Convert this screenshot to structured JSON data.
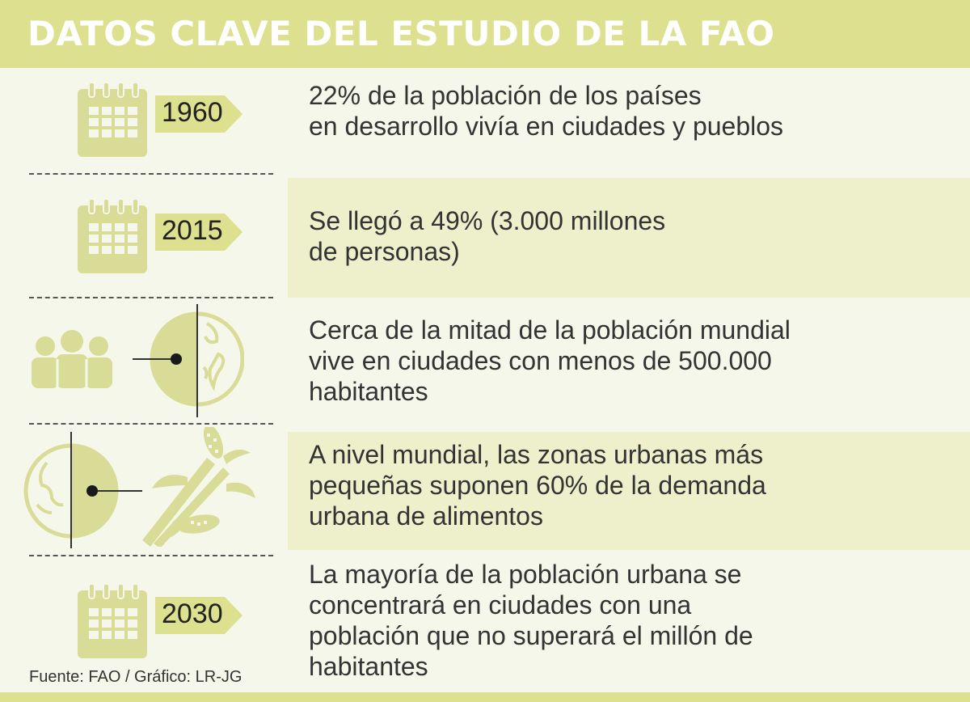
{
  "header": {
    "title": "DATOS CLAVE DEL ESTUDIO DE LA FAO"
  },
  "rows": [
    {
      "year": "1960",
      "lines": [
        "22% de la población de los países",
        "en desarrollo vivía en ciudades y pueblos"
      ]
    },
    {
      "year": "2015",
      "lines": [
        "Se llegó a 49% (3.000 millones",
        "de personas)"
      ]
    },
    {
      "year": "",
      "lines": [
        "Cerca de la mitad de la población mundial",
        "vive en ciudades con menos de 500.000",
        "habitantes"
      ]
    },
    {
      "year": "",
      "lines": [
        "A nivel mundial, las zonas urbanas más",
        "pequeñas suponen 60% de la demanda",
        "urbana de alimentos"
      ]
    },
    {
      "year": "2030",
      "lines": [
        "La mayoría de la población urbana se",
        "concentrará en ciudades con una",
        "población que no superará el millón de",
        "habitantes"
      ]
    }
  ],
  "footer": {
    "source": "Fuente: FAO / Gráfico: LR-JG"
  },
  "colors": {
    "accent": "#dde08f",
    "band": "#eef0cc",
    "background": "#f5f7ea",
    "icon": "#d8dc96"
  },
  "icons": [
    "calendar-icon",
    "people-icon",
    "globe-icon",
    "corn-icon"
  ]
}
